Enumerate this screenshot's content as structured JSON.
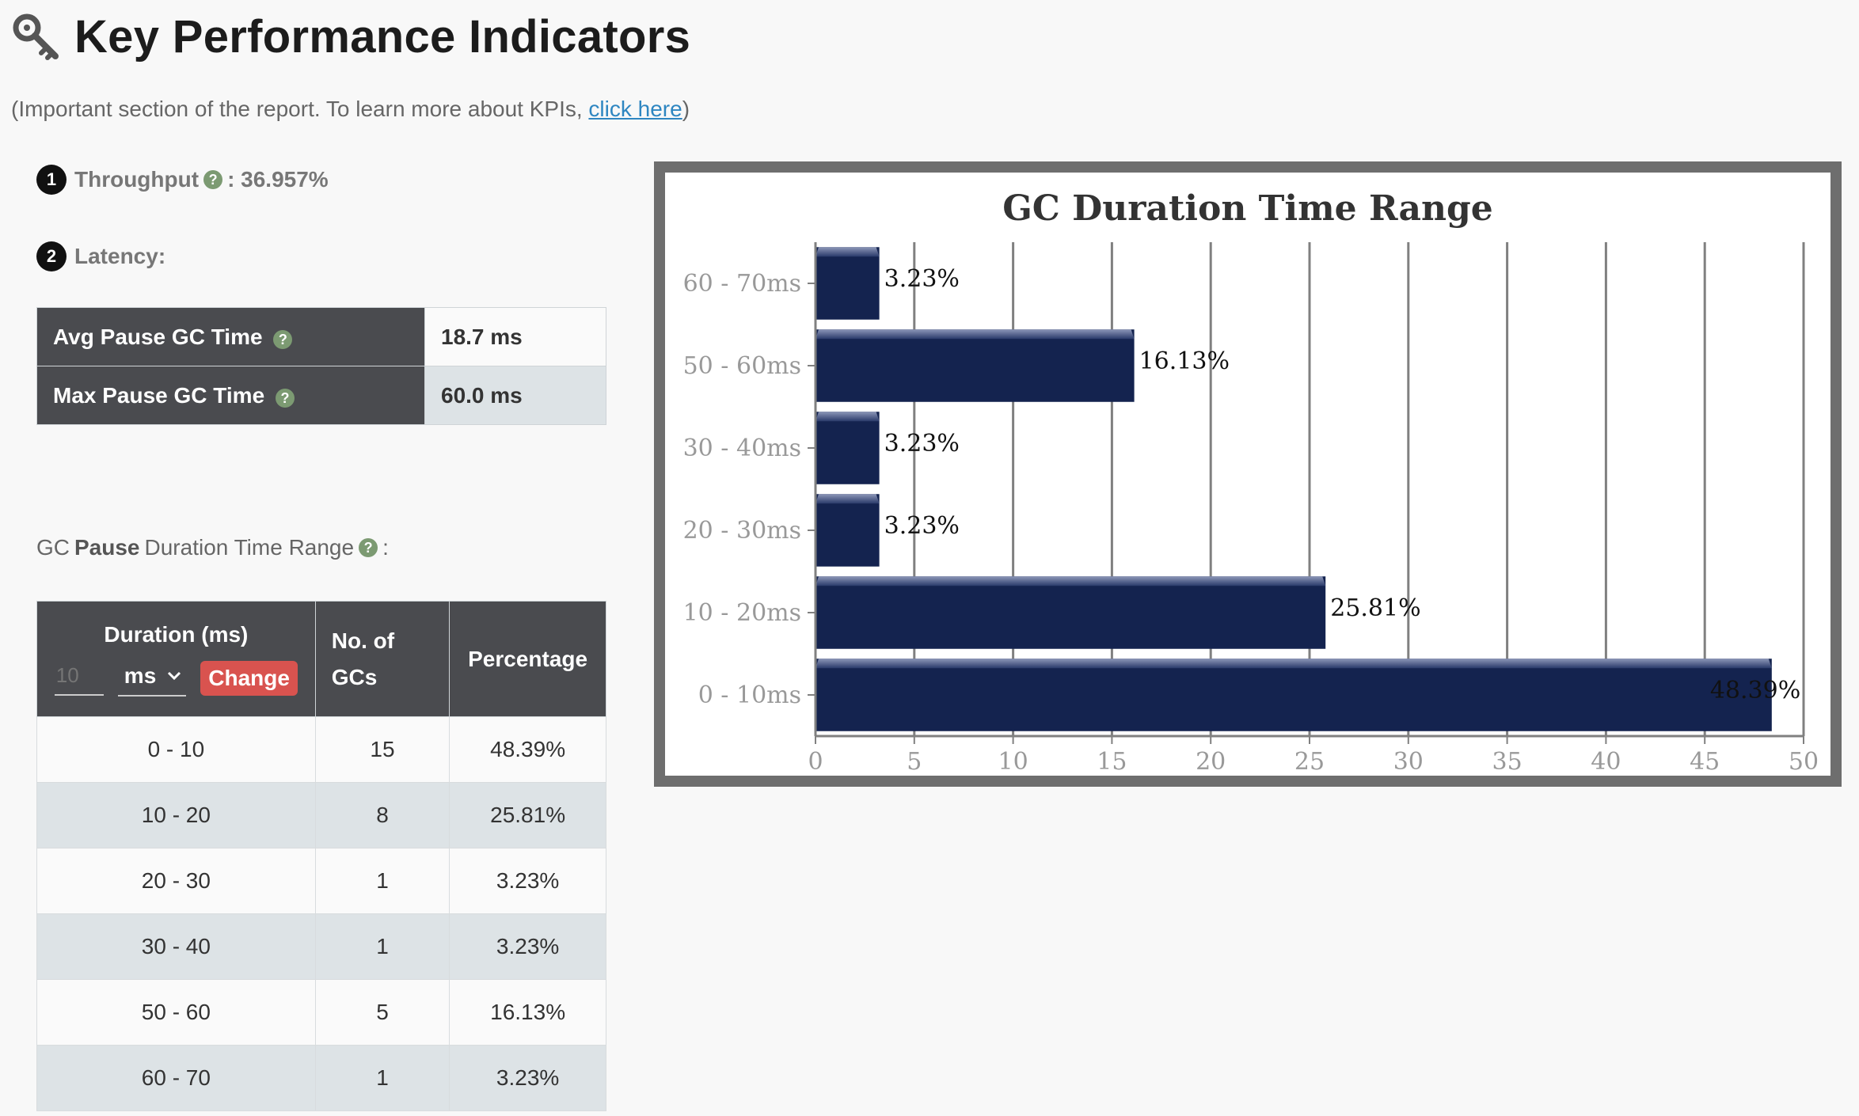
{
  "header": {
    "title": "Key Performance Indicators",
    "subtitle_prefix": "(Important section of the report. To learn more about KPIs, ",
    "subtitle_link": "click here",
    "subtitle_suffix": ")"
  },
  "throughput": {
    "badge": "1",
    "label": "Throughput",
    "value": ": 36.957%"
  },
  "latency": {
    "badge": "2",
    "label": "Latency:",
    "rows": [
      {
        "label": "Avg Pause GC Time",
        "value": "18.7 ms"
      },
      {
        "label": "Max Pause GC Time",
        "value": "60.0 ms"
      }
    ]
  },
  "range_heading": {
    "prefix": "GC",
    "bold": "Pause",
    "suffix": "Duration Time Range",
    "colon": ":"
  },
  "duration_table": {
    "headers": {
      "duration": "Duration (ms)",
      "count_line1": "No. of",
      "count_line2": "GCs",
      "percentage": "Percentage"
    },
    "controls": {
      "input_placeholder": "10",
      "unit": "ms",
      "change": "Change"
    },
    "rows": [
      {
        "range": "0 - 10",
        "count": "15",
        "pct": "48.39%"
      },
      {
        "range": "10 - 20",
        "count": "8",
        "pct": "25.81%"
      },
      {
        "range": "20 - 30",
        "count": "1",
        "pct": "3.23%"
      },
      {
        "range": "30 - 40",
        "count": "1",
        "pct": "3.23%"
      },
      {
        "range": "50 - 60",
        "count": "5",
        "pct": "16.13%"
      },
      {
        "range": "60 - 70",
        "count": "1",
        "pct": "3.23%"
      }
    ]
  },
  "chart_data": {
    "type": "bar",
    "orientation": "horizontal",
    "title": "GC Duration Time Range",
    "categories": [
      "60 - 70ms",
      "50 - 60ms",
      "30 - 40ms",
      "20 - 30ms",
      "10 - 20ms",
      "0 - 10ms"
    ],
    "values": [
      3.23,
      16.13,
      3.23,
      3.23,
      25.81,
      48.39
    ],
    "data_labels": [
      "3.23%",
      "16.13%",
      "3.23%",
      "3.23%",
      "25.81%",
      "48.39%"
    ],
    "xlim": [
      0,
      50
    ],
    "xticks": [
      0,
      5,
      10,
      15,
      20,
      25,
      30,
      35,
      40,
      45,
      50
    ],
    "grid": true,
    "bar_color": "#14234f"
  }
}
